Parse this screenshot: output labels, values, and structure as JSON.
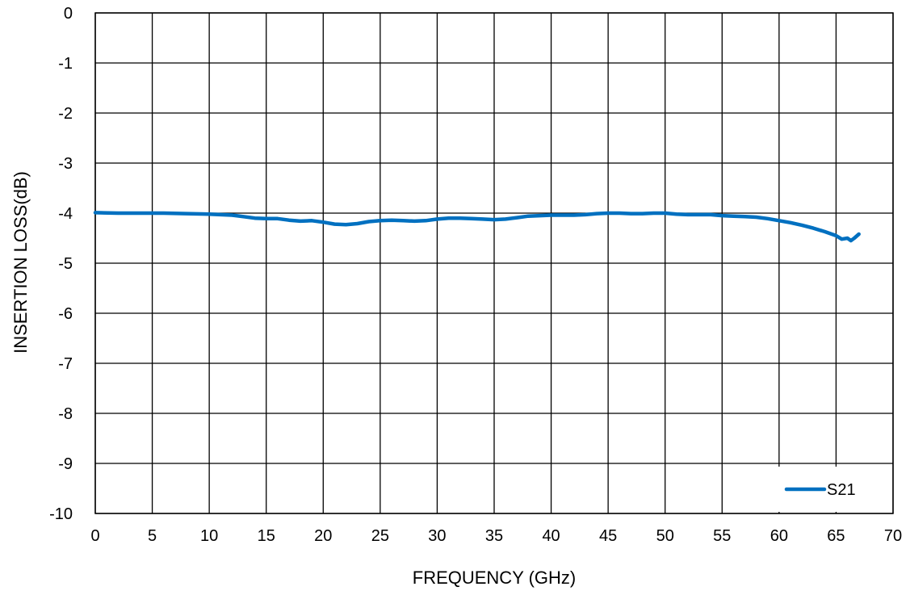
{
  "chart_data": {
    "type": "line",
    "title": "",
    "xlabel": "FREQUENCY (GHz)",
    "ylabel": "INSERTION LOSS(dB)",
    "xlim": [
      0,
      70
    ],
    "ylim": [
      -10,
      0
    ],
    "xticks": [
      0,
      5,
      10,
      15,
      20,
      25,
      30,
      35,
      40,
      45,
      50,
      55,
      60,
      65,
      70
    ],
    "yticks": [
      0,
      -1,
      -2,
      -3,
      -4,
      -5,
      -6,
      -7,
      -8,
      -9,
      -10
    ],
    "grid": true,
    "legend": "bottom-right",
    "series": [
      {
        "name": "S21",
        "color": "#0070C0",
        "x": [
          0,
          2,
          4,
          6,
          8,
          10,
          12,
          13,
          14,
          15,
          16,
          17,
          18,
          19,
          20,
          21,
          22,
          23,
          24,
          25,
          26,
          27,
          28,
          29,
          30,
          31,
          32,
          33,
          34,
          35,
          36,
          37,
          38,
          39,
          40,
          41,
          42,
          43,
          44,
          45,
          46,
          47,
          48,
          49,
          50,
          51,
          52,
          53,
          54,
          55,
          56,
          57,
          58,
          59,
          60,
          61,
          62,
          63,
          64,
          65,
          65.5,
          66,
          66.3,
          66.6,
          67
        ],
        "y": [
          -3.99,
          -4.0,
          -4.0,
          -4.0,
          -4.01,
          -4.02,
          -4.04,
          -4.07,
          -4.1,
          -4.11,
          -4.11,
          -4.14,
          -4.16,
          -4.15,
          -4.18,
          -4.22,
          -4.23,
          -4.21,
          -4.17,
          -4.15,
          -4.14,
          -4.15,
          -4.16,
          -4.15,
          -4.12,
          -4.1,
          -4.1,
          -4.11,
          -4.12,
          -4.13,
          -4.12,
          -4.09,
          -4.06,
          -4.05,
          -4.04,
          -4.04,
          -4.04,
          -4.03,
          -4.01,
          -4.0,
          -4.0,
          -4.01,
          -4.01,
          -4.0,
          -4.0,
          -4.02,
          -4.03,
          -4.03,
          -4.03,
          -4.05,
          -4.06,
          -4.07,
          -4.08,
          -4.11,
          -4.15,
          -4.19,
          -4.24,
          -4.3,
          -4.37,
          -4.45,
          -4.52,
          -4.5,
          -4.55,
          -4.5,
          -4.42
        ]
      }
    ]
  }
}
